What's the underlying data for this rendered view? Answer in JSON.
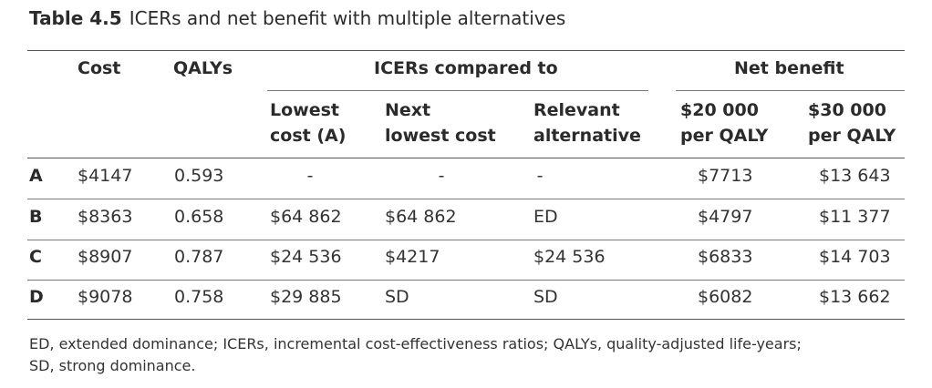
{
  "caption": {
    "number": "Table 4.5",
    "title": "ICERs and net benefit with multiple alternatives"
  },
  "headers": {
    "cost": "Cost",
    "qalys": "QALYs",
    "icers_group": "ICERs compared to",
    "net_benefit_group": "Net benefit",
    "lowest_cost": [
      "Lowest",
      "cost (A)"
    ],
    "next_lowest_cost": [
      "Next",
      "lowest cost"
    ],
    "relevant_alternative": [
      "Relevant",
      "alternative"
    ],
    "nb_20000": [
      "$20 000",
      "per QALY"
    ],
    "nb_30000": [
      "$30 000",
      "per QALY"
    ]
  },
  "rows": [
    {
      "label": "A",
      "cost": "$4147",
      "qalys": "0.593",
      "lowest": "-",
      "next": "-",
      "relevant": "-",
      "nb20": "$7713",
      "nb30": "$13 643"
    },
    {
      "label": "B",
      "cost": "$8363",
      "qalys": "0.658",
      "lowest": "$64 862",
      "next": "$64 862",
      "relevant": "ED",
      "nb20": "$4797",
      "nb30": "$11 377"
    },
    {
      "label": "C",
      "cost": "$8907",
      "qalys": "0.787",
      "lowest": "$24 536",
      "next": "$4217",
      "relevant": "$24 536",
      "nb20": "$6833",
      "nb30": "$14 703"
    },
    {
      "label": "D",
      "cost": "$9078",
      "qalys": "0.758",
      "lowest": "$29 885",
      "next": "SD",
      "relevant": "SD",
      "nb20": "$6082",
      "nb30": "$13 662"
    }
  ],
  "footnote": {
    "line1": "ED, extended dominance; ICERs, incremental cost-effectiveness ratios; QALYs, quality-adjusted life-years;",
    "line2": "SD, strong dominance."
  }
}
